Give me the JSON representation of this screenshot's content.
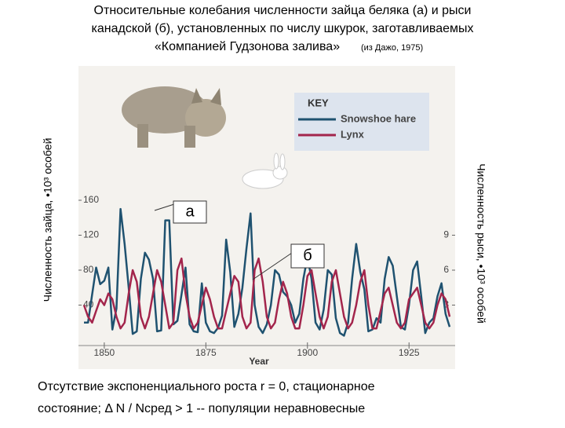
{
  "chart_data": {
    "type": "line",
    "title_lines": [
      "Относительные колебания численности зайца беляка (а) и рыси",
      "канадской (б), установленных по числу шкурок, заготавливаемых",
      "«Компанией Гудзонова залива»"
    ],
    "source": "(из Дажо, 1975)",
    "y_label": "Численность зайца, •10³ особей",
    "y2_label": "Численность рыси, •10³ особей",
    "x_label": "Year",
    "key_title": "KEY",
    "annotations": [
      "а",
      "б"
    ],
    "footer_lines": [
      "Отсутствие экспоненциального роста r = 0, стационарное",
      "состояние;   Δ N / Nсред > 1  -- популяции неравновесные"
    ],
    "xlim": [
      1845,
      1935
    ],
    "xticks": [
      1850,
      1875,
      1900,
      1925
    ],
    "ylim": [
      0,
      160
    ],
    "yticks": [
      40,
      80,
      120,
      160
    ],
    "y2lim": [
      0,
      12
    ],
    "y2ticks": [
      3,
      6,
      9
    ],
    "x": [
      1845,
      1846,
      1847,
      1848,
      1849,
      1850,
      1851,
      1852,
      1853,
      1854,
      1855,
      1856,
      1857,
      1858,
      1859,
      1860,
      1861,
      1862,
      1863,
      1864,
      1865,
      1866,
      1867,
      1868,
      1869,
      1870,
      1871,
      1872,
      1873,
      1874,
      1875,
      1876,
      1877,
      1878,
      1879,
      1880,
      1881,
      1882,
      1883,
      1884,
      1885,
      1886,
      1887,
      1888,
      1889,
      1890,
      1891,
      1892,
      1893,
      1894,
      1895,
      1896,
      1897,
      1898,
      1899,
      1900,
      1901,
      1902,
      1903,
      1904,
      1905,
      1906,
      1907,
      1908,
      1909,
      1910,
      1911,
      1912,
      1913,
      1914,
      1915,
      1916,
      1917,
      1918,
      1919,
      1920,
      1921,
      1922,
      1923,
      1924,
      1925,
      1926,
      1927,
      1928,
      1929,
      1930,
      1931,
      1932,
      1933,
      1934,
      1935
    ],
    "series": [
      {
        "name": "Snowshoe hare",
        "color": "#1f5270",
        "values": [
          20,
          20,
          52,
          83,
          64,
          68,
          83,
          12,
          36,
          150,
          110,
          60,
          7,
          10,
          70,
          100,
          92,
          70,
          10,
          11,
          137,
          137,
          18,
          22,
          52,
          83,
          18,
          10,
          9,
          65,
          20,
          10,
          8,
          14,
          28,
          115,
          78,
          15,
          30,
          60,
          105,
          145,
          40,
          15,
          8,
          18,
          40,
          80,
          75,
          55,
          50,
          40,
          20,
          30,
          70,
          95,
          70,
          20,
          12,
          35,
          80,
          75,
          25,
          8,
          5,
          20,
          70,
          110,
          78,
          58,
          10,
          12,
          25,
          20,
          70,
          95,
          85,
          50,
          15,
          12,
          40,
          80,
          90,
          50,
          8,
          20,
          25,
          50,
          65,
          30,
          15
        ]
      },
      {
        "name": "Lynx",
        "color": "#a3254c",
        "axis": "y2",
        "values": [
          3,
          2,
          1.5,
          2.5,
          3.5,
          3,
          4,
          3.5,
          2,
          1,
          1.5,
          4,
          6,
          5,
          2,
          1,
          2,
          4,
          6,
          5,
          3,
          1,
          1.5,
          6,
          7,
          4,
          2,
          1,
          1.5,
          3,
          4.5,
          3.5,
          2,
          1,
          1,
          2.5,
          4,
          5.5,
          5,
          2,
          1,
          1.5,
          6,
          7,
          5,
          2,
          1,
          1.5,
          3.5,
          5,
          4,
          2,
          1,
          1,
          3,
          5.5,
          6,
          4,
          2,
          1,
          2,
          5,
          6,
          4,
          2,
          1,
          1.5,
          3,
          5,
          6,
          3,
          1,
          1,
          2.5,
          4,
          4.5,
          3,
          1.5,
          1,
          1.5,
          3.5,
          4,
          4.5,
          3,
          1.5,
          1,
          1.5,
          3,
          4,
          3.5,
          2
        ]
      }
    ]
  }
}
